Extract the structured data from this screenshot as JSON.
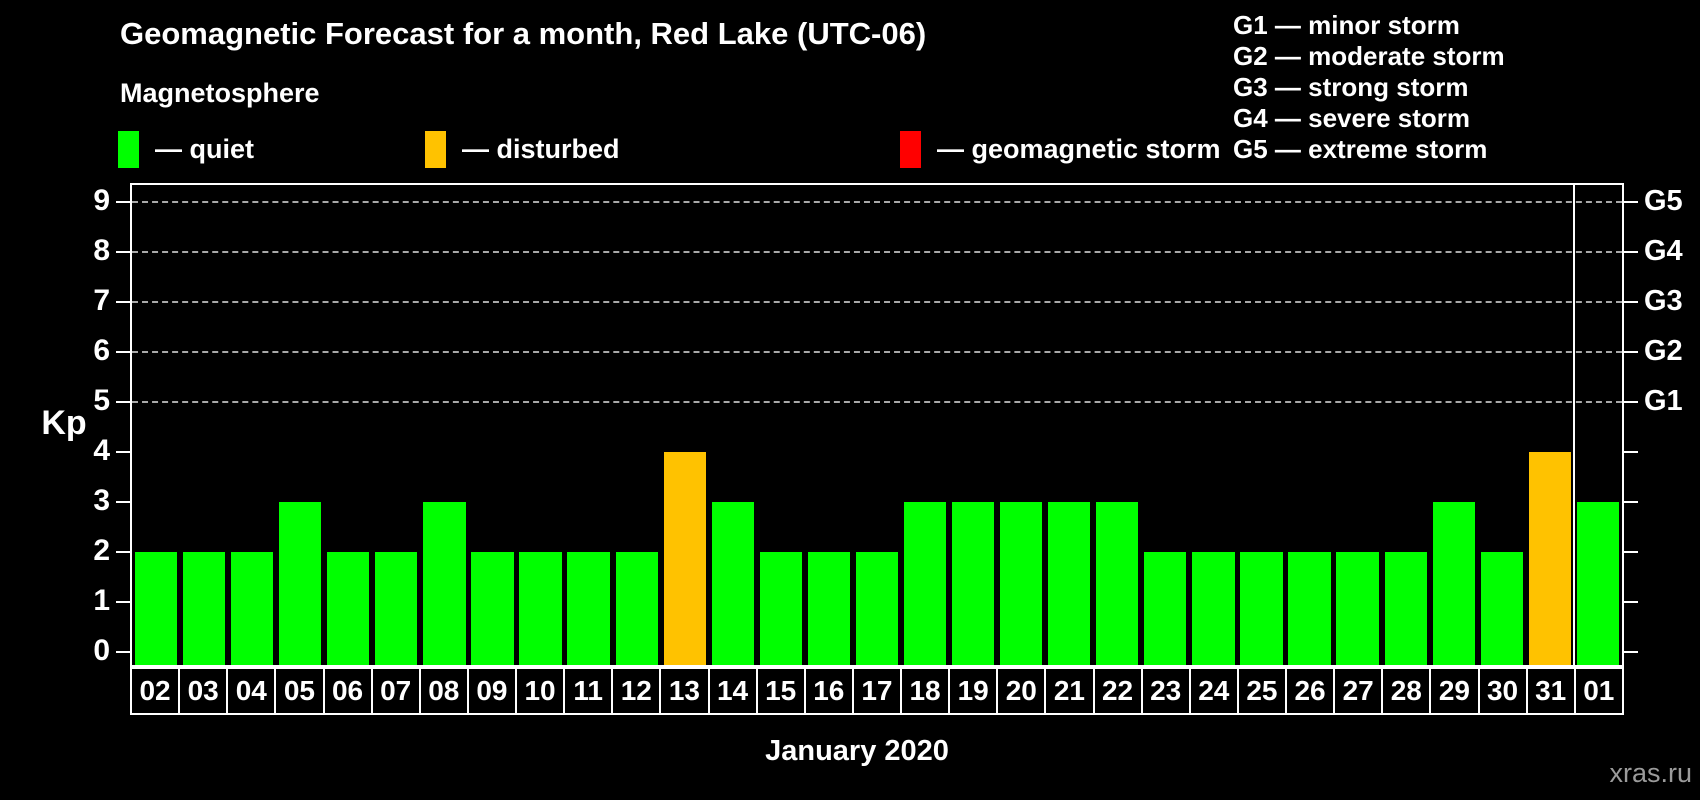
{
  "title": "Geomagnetic Forecast for a month, Red Lake (UTC-06)",
  "subtitle": "Magnetosphere",
  "legend": {
    "items": [
      {
        "name": "quiet",
        "label": "— quiet",
        "status": "quiet",
        "color": "#00ff00"
      },
      {
        "name": "disturbed",
        "label": "— disturbed",
        "status": "disturbed",
        "color": "#ffc200"
      },
      {
        "name": "storm",
        "label": "— geomagnetic storm",
        "status": "storm",
        "color": "#ff0000"
      }
    ]
  },
  "g_legend": [
    "G1 — minor storm",
    "G2 — moderate storm",
    "G3 — strong storm",
    "G4 — severe storm",
    "G5 — extreme storm"
  ],
  "chart_data": {
    "type": "bar",
    "title": "Geomagnetic Forecast for a month, Red Lake (UTC-06)",
    "xlabel": "January 2020",
    "ylabel": "Kp",
    "ylim": [
      0,
      9
    ],
    "yticks": [
      0,
      1,
      2,
      3,
      4,
      5,
      6,
      7,
      8,
      9
    ],
    "grid_levels": [
      5,
      6,
      7,
      8,
      9
    ],
    "grid": "dashed horizontal lines at Kp 5-9 only",
    "legend_position": "top",
    "right_axis": {
      "levels": [
        5,
        6,
        7,
        8,
        9
      ],
      "labels": [
        "G1",
        "G2",
        "G3",
        "G4",
        "G5"
      ]
    },
    "status_colors": {
      "quiet": "#00ff00",
      "disturbed": "#ffc200",
      "storm": "#ff0000"
    },
    "bars": [
      {
        "date": "02",
        "kp": 2,
        "status": "quiet"
      },
      {
        "date": "03",
        "kp": 2,
        "status": "quiet"
      },
      {
        "date": "04",
        "kp": 2,
        "status": "quiet"
      },
      {
        "date": "05",
        "kp": 3,
        "status": "quiet"
      },
      {
        "date": "06",
        "kp": 2,
        "status": "quiet"
      },
      {
        "date": "07",
        "kp": 2,
        "status": "quiet"
      },
      {
        "date": "08",
        "kp": 3,
        "status": "quiet"
      },
      {
        "date": "09",
        "kp": 2,
        "status": "quiet"
      },
      {
        "date": "10",
        "kp": 2,
        "status": "quiet"
      },
      {
        "date": "11",
        "kp": 2,
        "status": "quiet"
      },
      {
        "date": "12",
        "kp": 2,
        "status": "quiet"
      },
      {
        "date": "13",
        "kp": 4,
        "status": "disturbed"
      },
      {
        "date": "14",
        "kp": 3,
        "status": "quiet"
      },
      {
        "date": "15",
        "kp": 2,
        "status": "quiet"
      },
      {
        "date": "16",
        "kp": 2,
        "status": "quiet"
      },
      {
        "date": "17",
        "kp": 2,
        "status": "quiet"
      },
      {
        "date": "18",
        "kp": 3,
        "status": "quiet"
      },
      {
        "date": "19",
        "kp": 3,
        "status": "quiet"
      },
      {
        "date": "20",
        "kp": 3,
        "status": "quiet"
      },
      {
        "date": "21",
        "kp": 3,
        "status": "quiet"
      },
      {
        "date": "22",
        "kp": 3,
        "status": "quiet"
      },
      {
        "date": "23",
        "kp": 2,
        "status": "quiet"
      },
      {
        "date": "24",
        "kp": 2,
        "status": "quiet"
      },
      {
        "date": "25",
        "kp": 2,
        "status": "quiet"
      },
      {
        "date": "26",
        "kp": 2,
        "status": "quiet"
      },
      {
        "date": "27",
        "kp": 2,
        "status": "quiet"
      },
      {
        "date": "28",
        "kp": 2,
        "status": "quiet"
      },
      {
        "date": "29",
        "kp": 3,
        "status": "quiet"
      },
      {
        "date": "30",
        "kp": 2,
        "status": "quiet"
      },
      {
        "date": "31",
        "kp": 4,
        "status": "disturbed"
      },
      {
        "date": "01",
        "kp": 3,
        "status": "quiet"
      }
    ],
    "month_separator_after_index": 29
  },
  "footer": {
    "month_label": "January 2020",
    "watermark": "xras.ru"
  }
}
